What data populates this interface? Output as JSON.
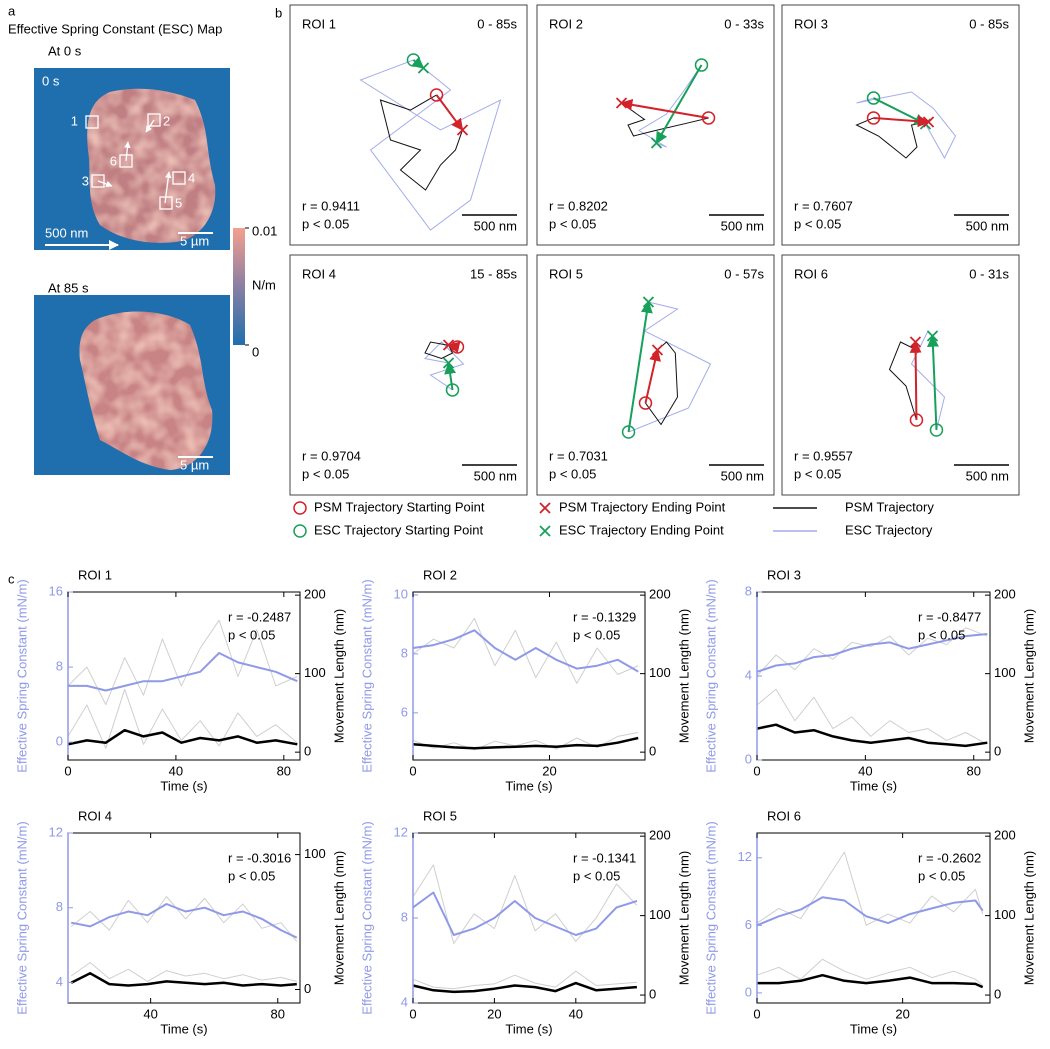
{
  "panel_a": {
    "label": "a",
    "title": "Effective Spring Constant (ESC) Map",
    "maps": [
      {
        "caption": "At 0 s",
        "time": "0 s",
        "roi_labels": [
          "1",
          "2",
          "3",
          "4",
          "5",
          "6"
        ],
        "arrow_label": "500 nm",
        "scale_label": "5 µm"
      },
      {
        "caption": "At 85 s",
        "scale_label": "5 µm"
      }
    ],
    "colorbar": {
      "unit": "N/m",
      "range": [
        0,
        0.01
      ],
      "ticks": [
        0.01,
        0
      ]
    }
  },
  "panel_b": {
    "label": "b",
    "psm_marker_color": "#d2232a",
    "esc_marker_color": "#17a05a",
    "psm_line_color": "#111111",
    "esc_line_color": "#a3acec",
    "rois": [
      {
        "roi": "ROI 1",
        "time": "0 - 85s",
        "r": "r = 0.9411",
        "p": "p < 0.05",
        "scale": "500 nm",
        "psm": {
          "x": [
            255,
            18,
            -255,
            -164,
            109,
            -73,
            155,
            291,
            427,
            491
          ],
          "y": [
            273,
            136,
            227,
            -136,
            -227,
            -409,
            -591,
            -364,
            -227,
            -45
          ]
        },
        "esc": {
          "x": [
            45,
            -436,
            291,
            836,
            564,
            200,
            -345,
            382,
            136
          ],
          "y": [
            591,
            409,
            -45,
            227,
            -682,
            -955,
            -227,
            318,
            518
          ]
        }
      },
      {
        "roi": "ROI 2",
        "time": "0 - 33s",
        "r": "r = 0.8202",
        "p": "p < 0.05",
        "scale": "500 nm",
        "psm": {
          "x": [
            482,
            300,
            0,
            -200,
            -250,
            -100,
            -309
          ],
          "y": [
            64,
            20,
            -50,
            -100,
            0,
            50,
            200
          ]
        },
        "esc": {
          "x": [
            418,
            250,
            100,
            -150,
            100,
            9
          ],
          "y": [
            545,
            300,
            100,
            -50,
            -200,
            -164
          ]
        }
      },
      {
        "roi": "ROI 3",
        "time": "0 - 85s",
        "r": "r = 0.7607",
        "p": "p < 0.05",
        "scale": "500 nm",
        "psm": {
          "x": [
            -245,
            -400,
            -200,
            50,
            150,
            100,
            255
          ],
          "y": [
            64,
            0,
            -100,
            -300,
            -200,
            0,
            27
          ]
        },
        "esc": {
          "x": [
            -245,
            -400,
            100,
            300,
            500,
            400,
            227
          ],
          "y": [
            245,
            200,
            300,
            150,
            -100,
            -300,
            9
          ]
        }
      },
      {
        "roi": "ROI 4",
        "time": "15 - 85s",
        "r": "r = 0.9704",
        "p": "p < 0.05",
        "scale": "500 nm",
        "psm": {
          "x": [
            445,
            200,
            150,
            300,
            400,
            364
          ],
          "y": [
            255,
            300,
            200,
            150,
            200,
            273
          ]
        },
        "esc": {
          "x": [
            400,
            200,
            500,
            300,
            150,
            364
          ],
          "y": [
            -136,
            0,
            100,
            300,
            150,
            109
          ]
        }
      },
      {
        "roi": "ROI 5",
        "time": "0 - 57s",
        "r": "r = 0.7031",
        "p": "p < 0.05",
        "scale": "500 nm",
        "psm": {
          "x": [
            -91,
            50,
            200,
            180,
            100,
            18
          ],
          "y": [
            -255,
            -450,
            -200,
            200,
            300,
            227
          ]
        },
        "esc": {
          "x": [
            -245,
            300,
            500,
            -100,
            200,
            -64
          ],
          "y": [
            -518,
            -300,
            100,
            400,
            600,
            664
          ]
        }
      },
      {
        "roi": "ROI 6",
        "time": "0 - 31s",
        "r": "r = 0.9557",
        "p": "p < 0.05",
        "scale": "500 nm",
        "psm": {
          "x": [
            145,
            50,
            -100,
            0,
            100,
            136
          ],
          "y": [
            -409,
            -100,
            50,
            300,
            250,
            300
          ]
        },
        "esc": {
          "x": [
            327,
            400,
            100,
            250,
            291
          ],
          "y": [
            -500,
            -200,
            100,
            400,
            355
          ]
        }
      }
    ],
    "legend": [
      {
        "label": "PSM Trajectory Starting Point",
        "symbol": "circle",
        "color": "#d2232a"
      },
      {
        "label": "PSM Trajectory Ending Point",
        "symbol": "cross",
        "color": "#d2232a"
      },
      {
        "label": "PSM Trajectory",
        "symbol": "line",
        "color": "#111111"
      },
      {
        "label": "ESC Trajectory Starting Point",
        "symbol": "circle",
        "color": "#17a05a"
      },
      {
        "label": "ESC Trajectory Ending Point",
        "symbol": "cross",
        "color": "#17a05a"
      },
      {
        "label": "ESC Trajectory",
        "symbol": "line",
        "color": "#a3acec"
      }
    ]
  },
  "panel_c_label": "c",
  "chart_data": [
    {
      "type": "line",
      "title": "ROI 1",
      "annotations": [
        "r = -0.2487",
        "p < 0.05"
      ],
      "xlabel": "Time (s)",
      "ylabel": "Effective Spring Constant (mN/m)",
      "y2label": "Movement Length (nm)",
      "y_axis_color": "#8f99e8",
      "x": [
        0,
        7,
        14,
        21,
        28,
        35,
        42,
        49,
        56,
        63,
        70,
        77,
        85
      ],
      "xlim": [
        0,
        86
      ],
      "xticks": [
        0,
        40,
        80
      ],
      "ylim": [
        -1.9,
        16
      ],
      "yticks": [
        0,
        8,
        16
      ],
      "y2lim": [
        -10,
        204
      ],
      "y2ticks": [
        0,
        100,
        200
      ],
      "series": [
        {
          "color": "#cfcfcf",
          "values": [
            6,
            8,
            4,
            9,
            5,
            11,
            6,
            10,
            13,
            7,
            12,
            6,
            7
          ]
        },
        {
          "color": "#cfcfcf",
          "axis": "y2",
          "values": [
            20,
            60,
            5,
            80,
            10,
            55,
            15,
            40,
            8,
            50,
            20,
            35,
            12
          ]
        },
        {
          "color": "#8f99e8",
          "values": [
            6,
            6,
            5.5,
            6,
            6.5,
            6.5,
            7,
            7.5,
            9.5,
            8.5,
            8,
            7.5,
            6.5
          ]
        },
        {
          "color": "#000000",
          "axis": "y2",
          "values": [
            10,
            15,
            12,
            28,
            20,
            25,
            12,
            18,
            15,
            20,
            12,
            15,
            10
          ]
        }
      ]
    },
    {
      "type": "line",
      "title": "ROI 2",
      "annotations": [
        "r = -0.1329",
        "p < 0.05"
      ],
      "xlabel": "Time (s)",
      "ylabel": "Effective Spring Constant (mN/m)",
      "y2label": "Movement Length (nm)",
      "y_axis_color": "#8f99e8",
      "x": [
        0,
        3,
        6,
        9,
        12,
        15,
        18,
        21,
        24,
        27,
        30,
        33
      ],
      "xlim": [
        0,
        34
      ],
      "xticks": [
        0,
        20
      ],
      "ylim": [
        4.4,
        10.1
      ],
      "yticks": [
        6,
        8,
        10
      ],
      "y2lim": [
        -10,
        204
      ],
      "y2ticks": [
        0,
        100,
        200
      ],
      "series": [
        {
          "color": "#cfcfcf",
          "values": [
            8.0,
            8.5,
            8.2,
            9.2,
            7.6,
            8.8,
            7.2,
            8.4,
            7.0,
            8.2,
            7.3,
            7.6
          ]
        },
        {
          "color": "#cfcfcf",
          "axis": "y2",
          "values": [
            15,
            5,
            12,
            3,
            14,
            8,
            15,
            4,
            18,
            6,
            20,
            25
          ]
        },
        {
          "color": "#8f99e8",
          "values": [
            8.2,
            8.3,
            8.5,
            8.8,
            8.2,
            7.8,
            8.2,
            7.8,
            7.5,
            7.6,
            7.8,
            7.4
          ]
        },
        {
          "color": "#000000",
          "axis": "y2",
          "values": [
            10,
            8,
            6,
            5,
            6,
            7,
            8,
            7,
            9,
            8,
            12,
            18
          ]
        }
      ]
    },
    {
      "type": "line",
      "title": "ROI 3",
      "annotations": [
        "r = -0.8477",
        "p < 0.05"
      ],
      "xlabel": "Time (s)",
      "ylabel": "Effective Spring Constant (mN/m)",
      "y2label": "Movement Length (nm)",
      "y_axis_color": "#8f99e8",
      "x": [
        0,
        7,
        14,
        21,
        28,
        35,
        42,
        49,
        56,
        63,
        70,
        77,
        85
      ],
      "xlim": [
        0,
        86
      ],
      "xticks": [
        0,
        40,
        80
      ],
      "ylim": [
        0,
        8
      ],
      "yticks": [
        0,
        4,
        8
      ],
      "y2lim": [
        -10,
        204
      ],
      "y2ticks": [
        0,
        100,
        200
      ],
      "series": [
        {
          "color": "#cfcfcf",
          "values": [
            4.0,
            5.0,
            4.3,
            5.3,
            4.8,
            5.6,
            5.4,
            5.9,
            5.0,
            5.8,
            5.5,
            6.3,
            5.9
          ]
        },
        {
          "color": "#cfcfcf",
          "axis": "y2",
          "values": [
            60,
            80,
            40,
            70,
            30,
            45,
            20,
            40,
            25,
            30,
            15,
            25,
            10
          ]
        },
        {
          "color": "#8f99e8",
          "values": [
            4.2,
            4.5,
            4.6,
            4.9,
            5.0,
            5.3,
            5.5,
            5.6,
            5.3,
            5.5,
            5.7,
            5.9,
            6.0
          ]
        },
        {
          "color": "#000000",
          "axis": "y2",
          "values": [
            30,
            35,
            25,
            28,
            20,
            15,
            12,
            15,
            18,
            12,
            10,
            8,
            12
          ]
        }
      ]
    },
    {
      "type": "line",
      "title": "ROI 4",
      "annotations": [
        "r = -0.3016",
        "p < 0.05"
      ],
      "xlabel": "Time (s)",
      "ylabel": "Effective Spring Constant (mN/m)",
      "y2label": "Movement Length (nm)",
      "y_axis_color": "#8f99e8",
      "x": [
        15,
        21,
        27,
        33,
        39,
        45,
        51,
        57,
        63,
        69,
        75,
        81,
        86
      ],
      "xlim": [
        14,
        87
      ],
      "xticks": [
        40,
        80
      ],
      "ylim": [
        2.9,
        12
      ],
      "yticks": [
        4,
        8,
        12
      ],
      "y2lim": [
        -10,
        116
      ],
      "y2ticks": [
        0,
        100
      ],
      "series": [
        {
          "color": "#cfcfcf",
          "values": [
            7.0,
            7.8,
            6.8,
            8.4,
            7.2,
            8.6,
            7.4,
            8.5,
            7.2,
            8.2,
            6.9,
            7.2,
            6.2
          ]
        },
        {
          "color": "#cfcfcf",
          "axis": "y2",
          "values": [
            10,
            20,
            8,
            15,
            6,
            14,
            10,
            12,
            8,
            11,
            7,
            9,
            6
          ]
        },
        {
          "color": "#8f99e8",
          "values": [
            7.2,
            7.0,
            7.5,
            7.8,
            7.6,
            8.2,
            7.8,
            8.0,
            7.6,
            7.8,
            7.4,
            6.8,
            6.4
          ]
        },
        {
          "color": "#000000",
          "axis": "y2",
          "values": [
            5,
            12,
            4,
            3,
            4,
            6,
            5,
            4,
            5,
            3,
            4,
            3,
            4
          ]
        }
      ]
    },
    {
      "type": "line",
      "title": "ROI 5",
      "annotations": [
        "r = -0.1341",
        "p < 0.05"
      ],
      "xlabel": "Time (s)",
      "ylabel": "Effective Spring Constant (mN/m)",
      "y2label": "Movement Length (nm)",
      "y_axis_color": "#8f99e8",
      "x": [
        0,
        5,
        10,
        15,
        20,
        25,
        30,
        35,
        40,
        45,
        50,
        55
      ],
      "xlim": [
        0,
        57
      ],
      "xticks": [
        0,
        20,
        40
      ],
      "ylim": [
        4,
        12
      ],
      "yticks": [
        4,
        8,
        12
      ],
      "y2lim": [
        -10,
        204
      ],
      "y2ticks": [
        0,
        100,
        200
      ],
      "series": [
        {
          "color": "#cfcfcf",
          "values": [
            9.0,
            10.5,
            6.8,
            8.2,
            7.5,
            10.0,
            7.4,
            8.2,
            6.9,
            8.0,
            9.6,
            8.6
          ]
        },
        {
          "color": "#cfcfcf",
          "axis": "y2",
          "values": [
            20,
            10,
            8,
            12,
            14,
            25,
            15,
            10,
            30,
            12,
            14,
            16
          ]
        },
        {
          "color": "#8f99e8",
          "values": [
            8.5,
            9.2,
            7.2,
            7.5,
            8.0,
            8.8,
            8.0,
            7.6,
            7.2,
            7.5,
            8.5,
            8.8
          ]
        },
        {
          "color": "#000000",
          "axis": "y2",
          "values": [
            12,
            6,
            4,
            5,
            8,
            12,
            10,
            5,
            15,
            6,
            8,
            10
          ]
        }
      ]
    },
    {
      "type": "line",
      "title": "ROI 6",
      "annotations": [
        "r = -0.2602",
        "p < 0.05"
      ],
      "xlabel": "Time (s)",
      "ylabel": "Effective Spring Constant (mN/m)",
      "y2label": "Movement Length (nm)",
      "y_axis_color": "#8f99e8",
      "x": [
        0,
        3,
        6,
        9,
        12,
        15,
        18,
        21,
        24,
        27,
        30,
        31
      ],
      "xlim": [
        0,
        32
      ],
      "xticks": [
        0,
        20
      ],
      "ylim": [
        -0.9,
        14.2
      ],
      "yticks": [
        0,
        6,
        12
      ],
      "y2lim": [
        -10,
        204
      ],
      "y2ticks": [
        0,
        100,
        200
      ],
      "series": [
        {
          "color": "#cfcfcf",
          "values": [
            6.2,
            7.5,
            6.6,
            9.5,
            12.5,
            6.0,
            7.0,
            6.2,
            8.6,
            7.2,
            9.2,
            7.0
          ]
        },
        {
          "color": "#cfcfcf",
          "axis": "y2",
          "values": [
            25,
            35,
            20,
            45,
            30,
            20,
            28,
            35,
            22,
            30,
            20,
            12
          ]
        },
        {
          "color": "#8f99e8",
          "values": [
            6,
            6.8,
            7.4,
            8.5,
            8.2,
            6.8,
            6.2,
            7.0,
            7.5,
            8.0,
            8.2,
            7.3
          ]
        },
        {
          "color": "#000000",
          "axis": "y2",
          "values": [
            15,
            15,
            18,
            25,
            18,
            15,
            18,
            22,
            15,
            15,
            14,
            10
          ]
        }
      ]
    }
  ]
}
